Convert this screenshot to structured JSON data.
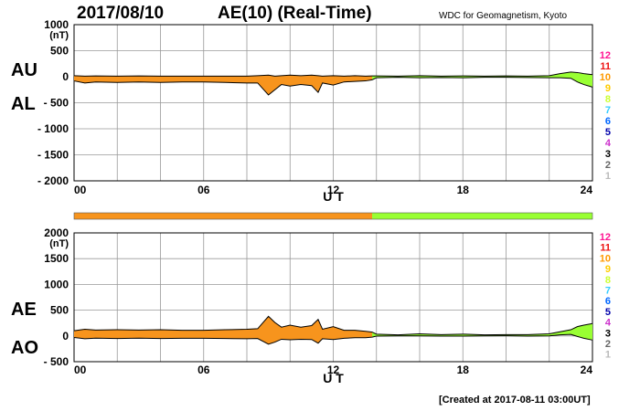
{
  "header": {
    "date": "2017/08/10",
    "title": "AE(10) (Real-Time)",
    "source": "WDC for Geomagnetism, Kyoto",
    "created": "[Created at 2017-08-11 03:00UT]"
  },
  "colors": {
    "orange": "#f7941d",
    "green": "#99ff33",
    "grid": "#999999"
  },
  "station_scale": [
    {
      "label": "12",
      "color": "#ff1493"
    },
    {
      "label": "11",
      "color": "#ee1111"
    },
    {
      "label": "10",
      "color": "#ff9900"
    },
    {
      "label": "9",
      "color": "#ffcc00"
    },
    {
      "label": "8",
      "color": "#ccff33"
    },
    {
      "label": "7",
      "color": "#33ccff"
    },
    {
      "label": "6",
      "color": "#0066ff"
    },
    {
      "label": "5",
      "color": "#0000aa"
    },
    {
      "label": "4",
      "color": "#cc33cc"
    },
    {
      "label": "3",
      "color": "#000000"
    },
    {
      "label": "2",
      "color": "#666666"
    },
    {
      "label": "1",
      "color": "#bbbbbb"
    }
  ],
  "chart_data": [
    {
      "type": "area",
      "panel": "AU / AL",
      "ylabels": [
        "AU",
        "AL"
      ],
      "unit": "(nT)",
      "xlabel": "U T",
      "xlim": [
        0,
        24
      ],
      "ylim": [
        -2000,
        1000
      ],
      "yticks": [
        "1000",
        "500",
        "0",
        "- 500",
        "- 1000",
        "- 1500",
        "- 2000"
      ],
      "xticks": [
        "00",
        "06",
        "12",
        "18",
        "24"
      ],
      "grid": true,
      "series": [
        {
          "name": "AU",
          "x": [
            0,
            0.5,
            1,
            2,
            3,
            4,
            5,
            6,
            7,
            8,
            8.5,
            9,
            9.3,
            9.6,
            10,
            10.5,
            11,
            11.3,
            11.5,
            12,
            12.5,
            13,
            13.5,
            13.8,
            14,
            15,
            16,
            17,
            18,
            19,
            20,
            21,
            22,
            22.5,
            23,
            23.3,
            23.6,
            24
          ],
          "values": [
            20,
            10,
            15,
            10,
            15,
            10,
            10,
            10,
            10,
            10,
            20,
            30,
            10,
            20,
            30,
            20,
            30,
            20,
            10,
            20,
            10,
            20,
            10,
            15,
            15,
            10,
            20,
            10,
            15,
            10,
            15,
            10,
            20,
            60,
            90,
            80,
            60,
            40
          ]
        },
        {
          "name": "AL",
          "x": [
            0,
            0.5,
            1,
            2,
            3,
            4,
            5,
            6,
            7,
            8,
            8.5,
            9,
            9.3,
            9.6,
            10,
            10.5,
            11,
            11.3,
            11.5,
            12,
            12.5,
            13,
            13.5,
            13.8,
            14,
            15,
            16,
            17,
            18,
            19,
            20,
            21,
            22,
            22.5,
            23,
            23.3,
            23.6,
            24
          ],
          "values": [
            -80,
            -120,
            -100,
            -110,
            -100,
            -110,
            -100,
            -100,
            -110,
            -120,
            -120,
            -350,
            -250,
            -150,
            -180,
            -150,
            -170,
            -300,
            -120,
            -160,
            -100,
            -90,
            -80,
            -60,
            -20,
            -10,
            -20,
            -15,
            -20,
            -10,
            -10,
            -15,
            -20,
            -20,
            -30,
            -100,
            -150,
            -200
          ]
        }
      ],
      "segment_colors": [
        {
          "from": 0,
          "to": 13.8,
          "color": "#f7941d"
        },
        {
          "from": 13.8,
          "to": 24,
          "color": "#99ff33"
        }
      ]
    },
    {
      "type": "area",
      "panel": "AE / AO",
      "ylabels": [
        "AE",
        "AO"
      ],
      "unit": "(nT)",
      "xlabel": "U T",
      "xlim": [
        0,
        24
      ],
      "ylim": [
        -500,
        2000
      ],
      "yticks": [
        "2000",
        "1500",
        "1000",
        "500",
        "0",
        "- 500"
      ],
      "xticks": [
        "00",
        "06",
        "12",
        "18",
        "24"
      ],
      "grid": true,
      "series": [
        {
          "name": "AE",
          "x": [
            0,
            0.5,
            1,
            2,
            3,
            4,
            5,
            6,
            7,
            8,
            8.5,
            9,
            9.3,
            9.6,
            10,
            10.5,
            11,
            11.3,
            11.5,
            12,
            12.5,
            13,
            13.5,
            13.8,
            14,
            15,
            16,
            17,
            18,
            19,
            20,
            21,
            22,
            22.5,
            23,
            23.3,
            23.6,
            24
          ],
          "values": [
            100,
            130,
            115,
            120,
            115,
            120,
            110,
            110,
            120,
            130,
            140,
            380,
            260,
            170,
            210,
            170,
            200,
            320,
            130,
            180,
            110,
            110,
            90,
            75,
            35,
            20,
            40,
            25,
            35,
            20,
            25,
            25,
            40,
            80,
            120,
            180,
            210,
            240
          ]
        },
        {
          "name": "AO",
          "x": [
            0,
            0.5,
            1,
            2,
            3,
            4,
            5,
            6,
            7,
            8,
            8.5,
            9,
            9.3,
            9.6,
            10,
            10.5,
            11,
            11.3,
            11.5,
            12,
            12.5,
            13,
            13.5,
            13.8,
            14,
            15,
            16,
            17,
            18,
            19,
            20,
            21,
            22,
            22.5,
            23,
            23.3,
            23.6,
            24
          ],
          "values": [
            -30,
            -55,
            -43,
            -50,
            -43,
            -50,
            -45,
            -45,
            -50,
            -55,
            -50,
            -160,
            -120,
            -65,
            -75,
            -65,
            -70,
            -140,
            -55,
            -70,
            -45,
            -35,
            -35,
            -23,
            -3,
            0,
            0,
            -3,
            -3,
            0,
            3,
            -3,
            0,
            20,
            30,
            -10,
            -45,
            -80
          ]
        }
      ],
      "segment_colors": [
        {
          "from": 0,
          "to": 13.8,
          "color": "#f7941d"
        },
        {
          "from": 13.8,
          "to": 24,
          "color": "#99ff33"
        }
      ]
    }
  ]
}
